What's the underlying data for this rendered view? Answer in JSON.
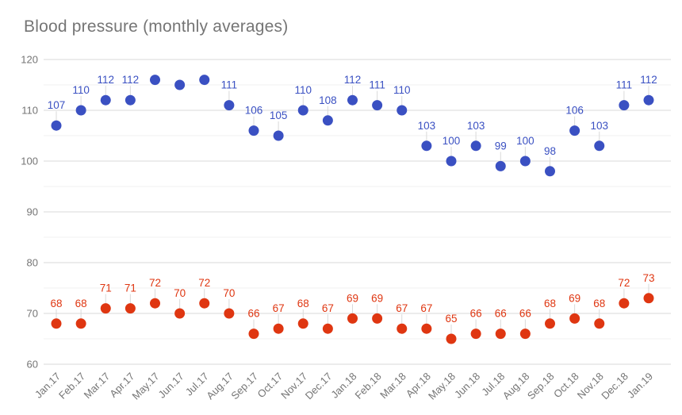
{
  "chart_data": {
    "type": "scatter",
    "title": "Blood pressure (monthly averages)",
    "categories": [
      "Jan.17",
      "Feb.17",
      "Mar.17",
      "Apr.17",
      "May.17",
      "Jun.17",
      "Jul.17",
      "Aug.17",
      "Sep.17",
      "Oct.17",
      "Nov.17",
      "Dec.17",
      "Jan.18",
      "Feb.18",
      "Mar.18",
      "Apr.18",
      "May.18",
      "Jun.18",
      "Jul.18",
      "Aug.18",
      "Sep.18",
      "Oct.18",
      "Nov.18",
      "Dec.18",
      "Jan.19"
    ],
    "series": [
      {
        "name": "blue",
        "color": "#3A50C2",
        "values": [
          107,
          110,
          112,
          112,
          116,
          115,
          116,
          111,
          106,
          105,
          110,
          108,
          112,
          111,
          110,
          103,
          100,
          103,
          99,
          100,
          98,
          106,
          103,
          111,
          112
        ],
        "labels": [
          "107",
          "110",
          "112",
          "112",
          null,
          null,
          null,
          "111",
          "106",
          "105",
          "110",
          "108",
          "112",
          "111",
          "110",
          "103",
          "100",
          "103",
          "99",
          "100",
          "98",
          "106",
          "103",
          "111",
          "112"
        ]
      },
      {
        "name": "red",
        "color": "#DF3611",
        "values": [
          68,
          68,
          71,
          71,
          72,
          70,
          72,
          70,
          66,
          67,
          68,
          67,
          69,
          69,
          67,
          67,
          65,
          66,
          66,
          66,
          68,
          69,
          68,
          72,
          73
        ],
        "labels": [
          "68",
          "68",
          "71",
          "71",
          "72",
          "70",
          "72",
          "70",
          "66",
          "67",
          "68",
          "67",
          "69",
          "69",
          "67",
          "67",
          "65",
          "66",
          "66",
          "66",
          "68",
          "69",
          "68",
          "72",
          "73"
        ]
      }
    ],
    "ylim": [
      60,
      120
    ],
    "yticks": [
      "60",
      "70",
      "80",
      "90",
      "100",
      "110",
      "120"
    ],
    "minor_yticks": [
      65,
      75,
      85,
      95,
      105,
      115
    ],
    "xlabel": "",
    "ylabel": "",
    "grid": true,
    "legend": "none"
  },
  "colors": {
    "title_text": "#757575",
    "axis_text": "#757575",
    "major_gridline": "#d9d9d9",
    "minor_gridline": "#f1f1f1",
    "annotation_stem": "#d9d9d9",
    "background": "#ffffff"
  }
}
